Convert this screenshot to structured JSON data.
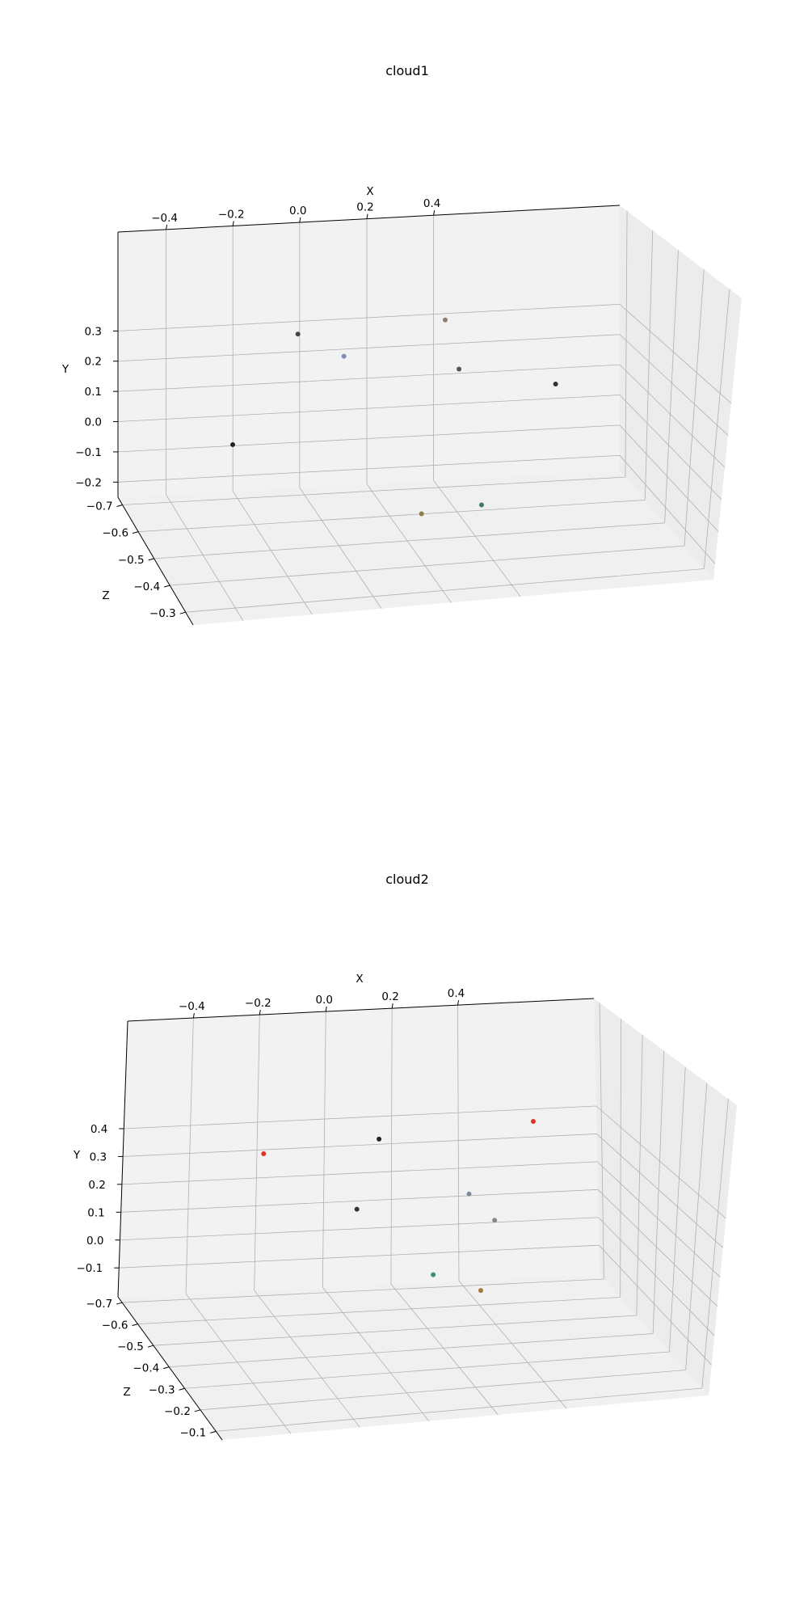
{
  "chart_data": [
    {
      "type": "scatter",
      "title": "cloud1",
      "xlabel": "X",
      "ylabel": "Y",
      "zlabel": "Z",
      "x_ticks": [
        "−0.4",
        "−0.2",
        "0.0",
        "0.2",
        "0.4"
      ],
      "y_ticks": [
        "−0.2",
        "−0.1",
        "0.0",
        "0.1",
        "0.2",
        "0.3"
      ],
      "z_ticks": [
        "−0.7",
        "−0.6",
        "−0.5",
        "−0.4",
        "−0.3"
      ],
      "xlim": [
        -0.55,
        0.55
      ],
      "ylim": [
        -0.2,
        0.33
      ],
      "zlim": [
        -0.75,
        -0.25
      ],
      "grid": true,
      "projection": "3d",
      "points": [
        {
          "x": -0.2,
          "y": 0.17,
          "z": -0.5,
          "color": "#444444"
        },
        {
          "x": -0.1,
          "y": 0.12,
          "z": -0.5,
          "color": "#7a8fb5"
        },
        {
          "x": 0.12,
          "y": 0.18,
          "z": -0.5,
          "color": "#8a8070"
        },
        {
          "x": 0.15,
          "y": 0.08,
          "z": -0.5,
          "color": "#555555"
        },
        {
          "x": 0.35,
          "y": 0.05,
          "z": -0.45,
          "color": "#333333"
        },
        {
          "x": -0.35,
          "y": -0.03,
          "z": -0.45,
          "color": "#222222"
        },
        {
          "x": 0.05,
          "y": -0.18,
          "z": -0.4,
          "color": "#8f7d4a"
        },
        {
          "x": 0.18,
          "y": -0.17,
          "z": -0.4,
          "color": "#3f7f5f"
        }
      ]
    },
    {
      "type": "scatter",
      "title": "cloud2",
      "xlabel": "X",
      "ylabel": "Y",
      "zlabel": "Z",
      "x_ticks": [
        "−0.4",
        "−0.2",
        "0.0",
        "0.2",
        "0.4"
      ],
      "y_ticks": [
        "−0.1",
        "0.0",
        "0.1",
        "0.2",
        "0.3",
        "0.4"
      ],
      "z_ticks": [
        "−0.7",
        "−0.6",
        "−0.5",
        "−0.4",
        "−0.3",
        "−0.2",
        "−0.1"
      ],
      "xlim": [
        -0.6,
        0.5
      ],
      "ylim": [
        -0.15,
        0.45
      ],
      "zlim": [
        -0.75,
        -0.05
      ],
      "grid": true,
      "projection": "3d",
      "points": [
        {
          "x": -0.1,
          "y": 0.07,
          "z": -0.5,
          "color": "#333333"
        },
        {
          "x": 0.15,
          "y": 0.1,
          "z": -0.45,
          "color": "#7f8aa0"
        },
        {
          "x": -0.05,
          "y": 0.22,
          "z": -0.5,
          "color": "#222222"
        },
        {
          "x": 0.2,
          "y": 0.05,
          "z": -0.4,
          "color": "#888888"
        },
        {
          "x": 0.05,
          "y": -0.05,
          "z": -0.35,
          "color": "#3f8f6f"
        },
        {
          "x": 0.15,
          "y": -0.08,
          "z": -0.3,
          "color": "#a07a40"
        },
        {
          "x": -0.3,
          "y": 0.18,
          "z": -0.6,
          "color": "#dd3322"
        },
        {
          "x": 0.3,
          "y": 0.25,
          "z": -0.45,
          "color": "#dd3322"
        }
      ]
    }
  ]
}
